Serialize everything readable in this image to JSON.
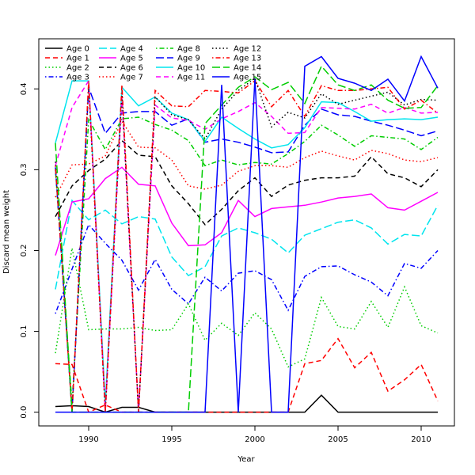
{
  "chart_data": {
    "type": "line",
    "title": "",
    "xlabel": "Year",
    "ylabel": "Discard mean weight",
    "xlim": [
      1987,
      2012
    ],
    "ylim": [
      -0.017,
      0.462
    ],
    "xticks": [
      1990,
      1995,
      2000,
      2005,
      2010
    ],
    "yticks": [
      0.0,
      0.1,
      0.2,
      0.3,
      0.4
    ],
    "ytick_labels": [
      "0.0",
      "0.1",
      "0.2",
      "0.3",
      "0.4"
    ],
    "grid": false,
    "legend_position": "top-left",
    "x": [
      1988,
      1989,
      1990,
      1991,
      1992,
      1993,
      1994,
      1995,
      1996,
      1997,
      1998,
      1999,
      2000,
      2001,
      2002,
      2003,
      2004,
      2005,
      2006,
      2007,
      2008,
      2009,
      2010,
      2011
    ],
    "series": [
      {
        "name": "Age 0",
        "color": "#000000",
        "dash": "solid",
        "values": [
          0.007,
          0.008,
          0.007,
          0.0,
          0.006,
          0.006,
          0.0,
          0.0,
          0.0,
          0.0,
          0.0,
          0.0,
          0.0,
          0.0,
          0.0,
          0.0,
          0.021,
          0.0,
          0.0,
          0.0,
          0.0,
          0.0,
          0.0,
          0.0
        ]
      },
      {
        "name": "Age 1",
        "color": "#ff0000",
        "dash": "dashed",
        "values": [
          0.06,
          0.059,
          0.0,
          0.009,
          0.0,
          0.0,
          0.0,
          0.0,
          0.0,
          0.0,
          0.0,
          0.0,
          0.0,
          0.0,
          0.0,
          0.06,
          0.064,
          0.091,
          0.055,
          0.074,
          0.026,
          0.04,
          0.059,
          0.014
        ]
      },
      {
        "name": "Age 2",
        "color": "#00cd00",
        "dash": "dotted",
        "values": [
          0.073,
          0.203,
          0.102,
          0.103,
          0.103,
          0.105,
          0.101,
          0.102,
          0.134,
          0.089,
          0.11,
          0.095,
          0.123,
          0.103,
          0.056,
          0.066,
          0.142,
          0.106,
          0.103,
          0.137,
          0.105,
          0.155,
          0.107,
          0.098
        ]
      },
      {
        "name": "Age 3",
        "color": "#0000ff",
        "dash": "dotdash",
        "values": [
          0.122,
          0.177,
          0.232,
          0.209,
          0.188,
          0.151,
          0.189,
          0.152,
          0.134,
          0.167,
          0.15,
          0.172,
          0.175,
          0.164,
          0.126,
          0.168,
          0.18,
          0.181,
          0.17,
          0.161,
          0.144,
          0.184,
          0.178,
          0.2
        ]
      },
      {
        "name": "Age 4",
        "color": "#00e5ee",
        "dash": "longdash",
        "values": [
          0.152,
          0.262,
          0.238,
          0.25,
          0.233,
          0.242,
          0.239,
          0.192,
          0.169,
          0.18,
          0.218,
          0.228,
          0.222,
          0.214,
          0.197,
          0.219,
          0.227,
          0.235,
          0.238,
          0.228,
          0.208,
          0.22,
          0.218,
          0.256
        ]
      },
      {
        "name": "Age 5",
        "color": "#ff00ff",
        "dash": "solid",
        "values": [
          0.194,
          0.26,
          0.264,
          0.289,
          0.303,
          0.282,
          0.28,
          0.234,
          0.206,
          0.207,
          0.222,
          0.262,
          0.242,
          0.252,
          0.254,
          0.256,
          0.26,
          0.265,
          0.267,
          0.27,
          0.253,
          0.25,
          0.261,
          0.272
        ]
      },
      {
        "name": "Age 6",
        "color": "#000000",
        "dash": "dashed",
        "values": [
          0.242,
          0.28,
          0.299,
          0.313,
          0.336,
          0.318,
          0.316,
          0.28,
          0.258,
          0.232,
          0.251,
          0.274,
          0.29,
          0.267,
          0.281,
          0.287,
          0.29,
          0.29,
          0.292,
          0.316,
          0.295,
          0.29,
          0.279,
          0.3
        ]
      },
      {
        "name": "Age 7",
        "color": "#ff0000",
        "dash": "dotted",
        "values": [
          0.266,
          0.306,
          0.307,
          0.317,
          0.36,
          0.328,
          0.327,
          0.312,
          0.28,
          0.276,
          0.281,
          0.298,
          0.305,
          0.305,
          0.303,
          0.315,
          0.323,
          0.317,
          0.312,
          0.324,
          0.32,
          0.312,
          0.31,
          0.315
        ]
      },
      {
        "name": "Age 8",
        "color": "#00cd00",
        "dash": "dotdash",
        "values": [
          0.3,
          0.01,
          0.362,
          0.325,
          0.363,
          0.365,
          0.356,
          0.349,
          0.336,
          0.305,
          0.312,
          0.306,
          0.309,
          0.307,
          0.32,
          0.335,
          0.355,
          0.343,
          0.329,
          0.342,
          0.34,
          0.338,
          0.325,
          0.34
        ]
      },
      {
        "name": "Age 9",
        "color": "#0000ff",
        "dash": "longdash",
        "values": [
          0.303,
          0.0,
          0.402,
          0.345,
          0.37,
          0.372,
          0.372,
          0.355,
          0.363,
          0.334,
          0.338,
          0.334,
          0.328,
          0.321,
          0.322,
          0.355,
          0.375,
          0.368,
          0.366,
          0.36,
          0.355,
          0.349,
          0.342,
          0.348
        ]
      },
      {
        "name": "Age 10",
        "color": "#00e5ee",
        "dash": "solid",
        "values": [
          0.333,
          0.41,
          0.41,
          0.01,
          0.402,
          0.379,
          0.39,
          0.37,
          0.362,
          0.335,
          0.365,
          0.351,
          0.338,
          0.327,
          0.331,
          0.352,
          0.384,
          0.383,
          0.372,
          0.36,
          0.362,
          0.363,
          0.362,
          0.365
        ]
      },
      {
        "name": "Age 11",
        "color": "#ff00ff",
        "dash": "dashed",
        "values": [
          0.305,
          0.377,
          0.41,
          0.0,
          0.39,
          0.0,
          0.38,
          0.364,
          0.361,
          0.35,
          0.363,
          0.372,
          0.383,
          0.366,
          0.345,
          0.346,
          0.377,
          0.376,
          0.375,
          0.381,
          0.37,
          0.377,
          0.37,
          0.371
        ]
      },
      {
        "name": "Age 12",
        "color": "#000000",
        "dash": "dotted",
        "values": [
          0.31,
          0.0,
          0.405,
          0.0,
          0.395,
          0.0,
          0.39,
          0.368,
          0.362,
          0.338,
          0.375,
          0.398,
          0.413,
          0.353,
          0.371,
          0.364,
          0.394,
          0.381,
          0.386,
          0.391,
          0.396,
          0.38,
          0.387,
          0.386
        ]
      },
      {
        "name": "Age 13",
        "color": "#ff0000",
        "dash": "dotdash",
        "values": [
          0.305,
          0.0,
          0.41,
          0.0,
          0.405,
          0.0,
          0.398,
          0.379,
          0.378,
          0.398,
          0.397,
          0.395,
          0.41,
          0.378,
          0.398,
          0.366,
          0.404,
          0.398,
          0.398,
          0.4,
          0.402,
          0.375,
          0.386,
          0.37
        ]
      },
      {
        "name": "Age 14",
        "color": "#00cd00",
        "dash": "longdash",
        "values": [
          0.333,
          0.0,
          0.0,
          0.0,
          0.0,
          0.0,
          0.0,
          0.0,
          0.0,
          0.357,
          0.38,
          0.402,
          0.415,
          0.399,
          0.408,
          0.382,
          0.428,
          0.405,
          0.398,
          0.405,
          0.386,
          0.376,
          0.377,
          0.404
        ]
      },
      {
        "name": "Age 15",
        "color": "#0000ff",
        "dash": "solid",
        "values": [
          0.0,
          0.0,
          0.0,
          0.0,
          0.0,
          0.0,
          0.0,
          0.0,
          0.0,
          0.0,
          0.405,
          0.0,
          0.413,
          0.0,
          0.0,
          0.428,
          0.44,
          0.413,
          0.407,
          0.398,
          0.412,
          0.385,
          0.44,
          0.401
        ]
      }
    ]
  }
}
